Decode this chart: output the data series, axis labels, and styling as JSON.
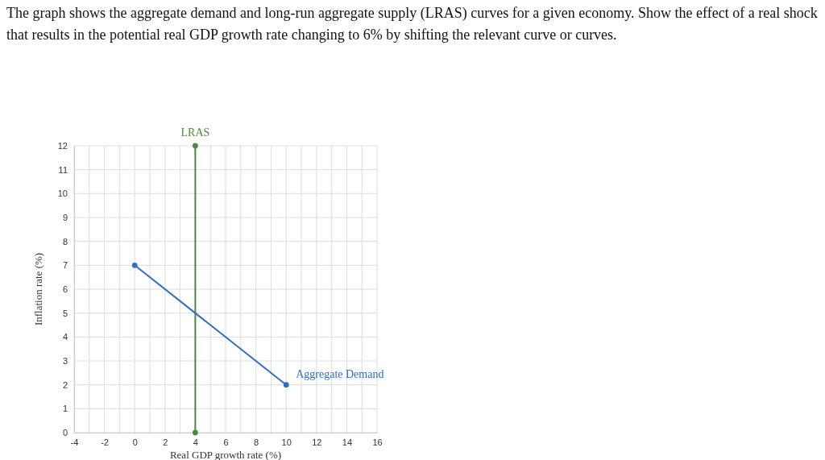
{
  "chart_data": {
    "type": "line",
    "title": "The graph shows the aggregate demand and long-run aggregate supply (LRAS) curves for a given economy. Show the effect of a real shock that results in the potential real GDP growth rate changing to 6% by shifting the relevant curve or curves.",
    "xlabel": "Real GDP growth rate (%)",
    "ylabel": "Inflation rate (%)",
    "series": [
      {
        "name": "LRAS",
        "color": "#4a8a3a",
        "x": [
          4,
          4
        ],
        "values": [
          0,
          12
        ]
      },
      {
        "name": "Aggregate Demand",
        "color": "#2f6fbf",
        "x": [
          0,
          10
        ],
        "values": [
          7,
          2
        ]
      }
    ],
    "xlim": [
      -4,
      16
    ],
    "xticks": [
      -4,
      {
        "value": -3,
        "label": null
      },
      -2,
      {
        "value": -1,
        "label": null
      },
      0,
      {
        "value": 1,
        "label": null
      },
      2,
      {
        "value": 3,
        "label": null
      },
      4,
      {
        "value": 5,
        "label": null
      },
      6,
      {
        "value": 7,
        "label": null
      },
      8,
      {
        "value": 9,
        "label": null
      },
      10,
      {
        "value": 11,
        "label": null
      },
      12,
      {
        "value": 13,
        "label": null
      },
      14,
      {
        "value": 15,
        "label": null
      },
      16
    ],
    "ylim": [
      0,
      12
    ],
    "yticks": [
      0,
      1,
      2,
      3,
      4,
      5,
      6,
      7,
      8,
      9,
      10,
      11,
      12
    ],
    "grid": true,
    "marker": "circle",
    "line_style": "solid"
  }
}
